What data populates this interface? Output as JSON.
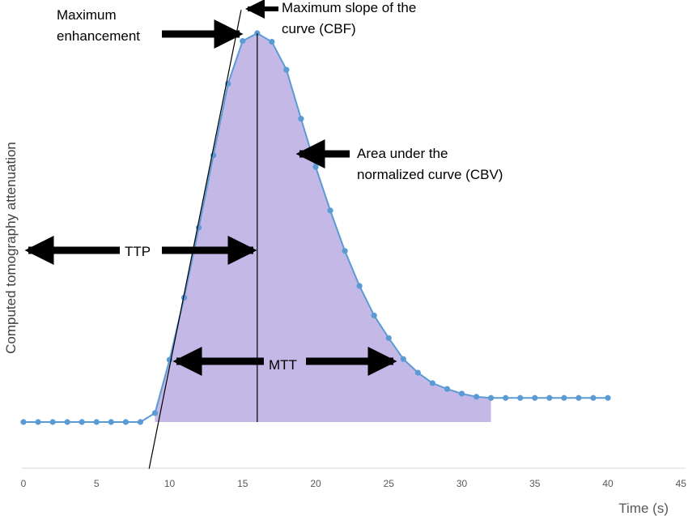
{
  "chart_data": {
    "type": "area",
    "title": "",
    "xlabel": "Time (s)",
    "ylabel": "Computed tomography attenuation",
    "xlim": [
      0,
      45
    ],
    "x_ticks": [
      0,
      5,
      10,
      15,
      20,
      25,
      30,
      35,
      40,
      45
    ],
    "y_tick_labels": false,
    "grid": false,
    "legend": "none",
    "colors": {
      "line": "#5b9bd5",
      "fill": "#c4b8e6",
      "annotation": "#000000"
    },
    "series": [
      {
        "x": [
          0,
          1,
          2,
          3,
          4,
          5,
          6,
          7,
          8,
          9,
          10,
          11,
          12,
          13,
          14,
          15,
          16,
          17,
          18,
          19,
          20,
          21,
          22,
          23,
          24,
          25,
          26,
          27,
          28,
          29,
          30,
          31,
          32,
          33,
          34,
          35,
          36,
          37,
          38,
          39,
          40
        ],
        "y": [
          0,
          0,
          0,
          0,
          0,
          0,
          0,
          0,
          0,
          2.3,
          16.0,
          32.0,
          50.0,
          68.6,
          87.0,
          98.0,
          100,
          97.8,
          90.6,
          78.0,
          65.6,
          54.4,
          44.0,
          35.0,
          27.4,
          21.6,
          16.2,
          12.7,
          10.0,
          8.5,
          7.3,
          6.5,
          6.2,
          6.2,
          6.2,
          6.2,
          6.2,
          6.2,
          6.2,
          6.2,
          6.2
        ]
      }
    ],
    "shaded_area": {
      "x_start": 9,
      "x_end": 32,
      "y_baseline": 0
    },
    "peak": {
      "x": 16,
      "y": 100
    },
    "tangent_line": {
      "x1": 8.6,
      "y1": -12,
      "x2": 14.9,
      "y2": 106
    }
  },
  "annotations": {
    "max_enhancement": [
      "Maximum",
      "enhancement"
    ],
    "max_slope": [
      "Maximum slope of the",
      "curve (CBF)"
    ],
    "area": [
      "Area under the",
      "normalized curve (CBV)"
    ],
    "ttp": "TTP",
    "mtt": "MTT"
  }
}
